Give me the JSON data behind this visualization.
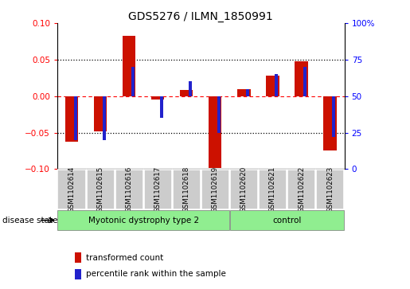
{
  "title": "GDS5276 / ILMN_1850991",
  "categories": [
    "GSM1102614",
    "GSM1102615",
    "GSM1102616",
    "GSM1102617",
    "GSM1102618",
    "GSM1102619",
    "GSM1102620",
    "GSM1102621",
    "GSM1102622",
    "GSM1102623"
  ],
  "red_values": [
    -0.063,
    -0.048,
    0.083,
    -0.005,
    0.008,
    -0.098,
    0.01,
    0.028,
    0.048,
    -0.075
  ],
  "blue_pct_values": [
    20,
    20,
    70,
    35,
    60,
    25,
    55,
    65,
    70,
    22
  ],
  "bar_color_red": "#CC1100",
  "bar_color_blue": "#2222CC",
  "ylim_left": [
    -0.1,
    0.1
  ],
  "ylim_right": [
    0,
    100
  ],
  "yticks_left": [
    -0.1,
    -0.05,
    0.0,
    0.05,
    0.1
  ],
  "yticks_right": [
    0,
    25,
    50,
    75,
    100
  ],
  "disease_state_label": "disease state",
  "group1_label": "Myotonic dystrophy type 2",
  "group1_count": 6,
  "group2_label": "control",
  "group2_count": 4,
  "legend_items": [
    "transformed count",
    "percentile rank within the sample"
  ],
  "bg_color": "#ffffff"
}
